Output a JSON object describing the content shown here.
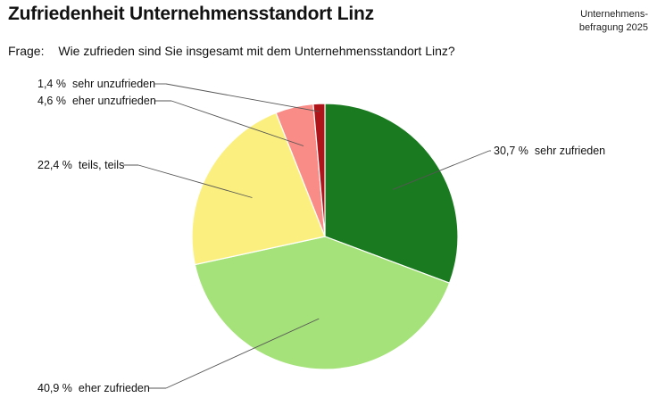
{
  "header": {
    "title": "Zufriedenheit Unternehmensstandort Linz",
    "source_line1": "Unternehmens-",
    "source_line2": "befragung 2025"
  },
  "question": {
    "label": "Frage:",
    "text": "Wie zufrieden sind Sie insgesamt mit dem Unternehmensstandort Linz?"
  },
  "chart_data": {
    "type": "pie",
    "title": "Zufriedenheit Unternehmensstandort Linz",
    "categories": [
      "sehr zufrieden",
      "eher zufrieden",
      "teils, teils",
      "eher unzufrieden",
      "sehr unzufrieden"
    ],
    "values": [
      30.7,
      40.9,
      22.4,
      4.6,
      1.4
    ],
    "value_labels": [
      "30,7 %",
      "40,9 %",
      "22,4 %",
      "4,6 %",
      "1,4 %"
    ],
    "colors": [
      "#1a7a1f",
      "#a5e27a",
      "#fbf07f",
      "#f98c86",
      "#b0141b"
    ],
    "start": "12 o'clock",
    "direction": "clockwise",
    "legend": "none (direct labels with leader lines)"
  }
}
